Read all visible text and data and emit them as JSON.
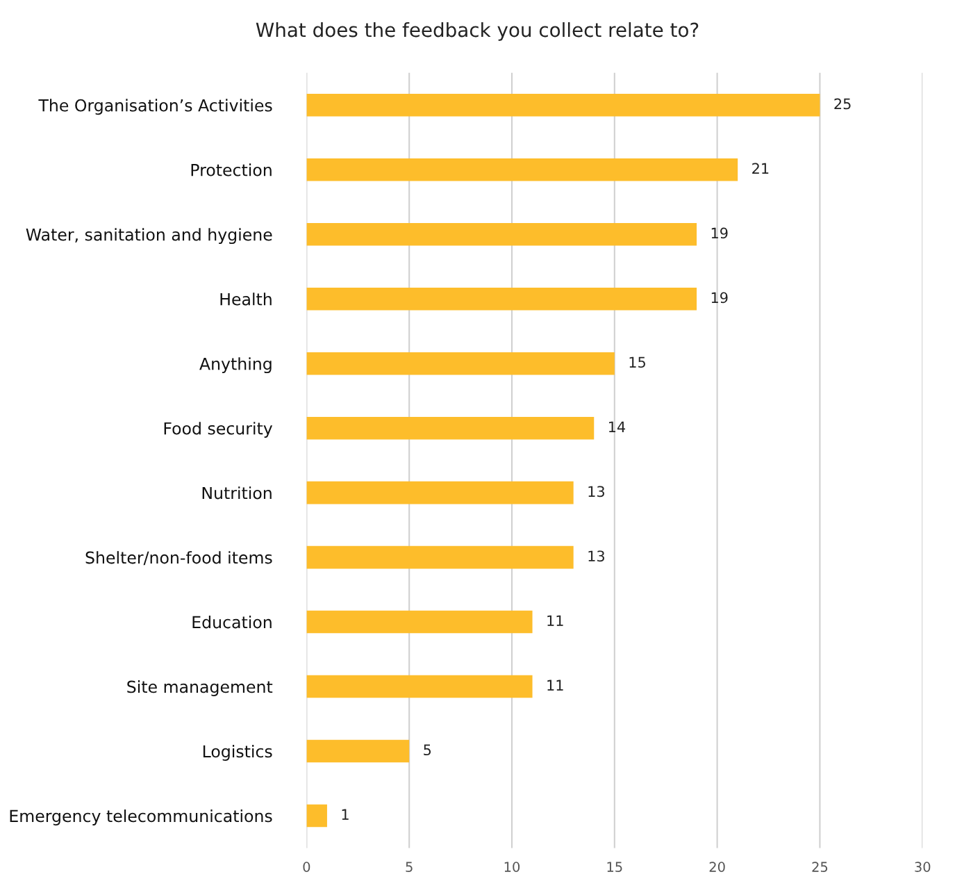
{
  "chart_data": {
    "type": "bar",
    "orientation": "horizontal",
    "title": "What does the feedback you collect relate to?",
    "categories": [
      "The Organisation’s Activities",
      "Protection",
      "Water, sanitation and hygiene",
      "Health",
      "Anything",
      "Food security",
      "Nutrition",
      "Shelter/non-food items",
      "Education",
      "Site management",
      "Logistics",
      "Emergency telecommunications"
    ],
    "values": [
      25,
      21,
      19,
      19,
      15,
      14,
      13,
      13,
      11,
      11,
      5,
      1
    ],
    "color": "#fdbd2b",
    "xlim": [
      0,
      30
    ],
    "xticks": [
      0,
      5,
      10,
      15,
      20,
      25,
      30
    ],
    "grid": "x",
    "data_labels": true,
    "legend": false
  }
}
